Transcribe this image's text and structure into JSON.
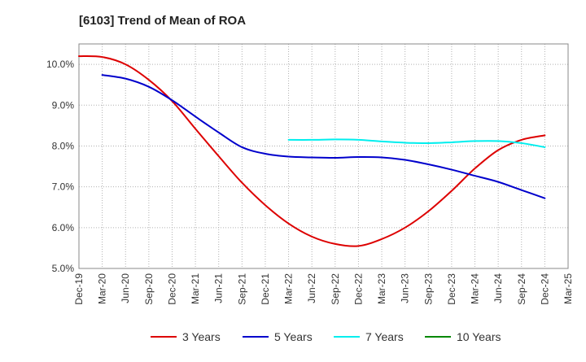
{
  "chart_data": {
    "type": "line",
    "title": "[6103]  Trend of Mean of ROA",
    "xlabel": "",
    "ylabel": "",
    "ylim": [
      5.0,
      10.5
    ],
    "yticks": [
      5.0,
      6.0,
      7.0,
      8.0,
      9.0,
      10.0
    ],
    "ytick_labels": [
      "5.0%",
      "6.0%",
      "7.0%",
      "8.0%",
      "9.0%",
      "10.0%"
    ],
    "categories": [
      "Dec-19",
      "Mar-20",
      "Jun-20",
      "Sep-20",
      "Dec-20",
      "Mar-21",
      "Jun-21",
      "Sep-21",
      "Dec-21",
      "Mar-22",
      "Jun-22",
      "Sep-22",
      "Dec-22",
      "Mar-23",
      "Jun-23",
      "Sep-23",
      "Dec-23",
      "Mar-24",
      "Jun-24",
      "Sep-24",
      "Dec-24",
      "Mar-25"
    ],
    "grid": true,
    "legend_position": "bottom",
    "series": [
      {
        "name": "3 Years",
        "color": "#dd0000",
        "values": [
          10.2,
          10.18,
          10.0,
          9.62,
          9.1,
          8.42,
          7.75,
          7.1,
          6.55,
          6.1,
          5.78,
          5.6,
          5.55,
          5.72,
          6.0,
          6.4,
          6.9,
          7.45,
          7.9,
          8.15,
          8.26,
          null
        ]
      },
      {
        "name": "5 Years",
        "color": "#0000cc",
        "values": [
          null,
          9.74,
          9.65,
          9.45,
          9.12,
          8.72,
          8.33,
          7.97,
          7.81,
          7.74,
          7.72,
          7.71,
          7.73,
          7.72,
          7.66,
          7.55,
          7.42,
          7.27,
          7.12,
          6.92,
          6.72,
          null
        ]
      },
      {
        "name": "7 Years",
        "color": "#00eeee",
        "values": [
          null,
          null,
          null,
          null,
          null,
          null,
          null,
          null,
          null,
          8.15,
          8.15,
          8.16,
          8.15,
          8.11,
          8.08,
          8.07,
          8.09,
          8.12,
          8.12,
          8.07,
          7.97,
          null
        ]
      },
      {
        "name": "10 Years",
        "color": "#008800",
        "values": [
          null,
          null,
          null,
          null,
          null,
          null,
          null,
          null,
          null,
          null,
          null,
          null,
          null,
          null,
          null,
          null,
          null,
          null,
          null,
          null,
          null,
          null
        ]
      }
    ]
  }
}
